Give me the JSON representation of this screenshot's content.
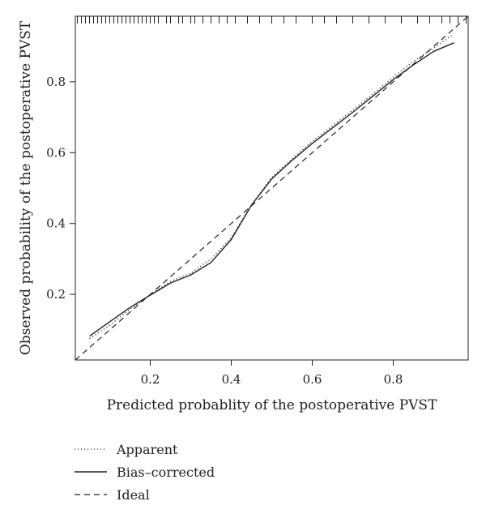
{
  "chart_data": {
    "type": "line",
    "title": "",
    "xlabel": "Predicted probablity of the postoperative PVST",
    "ylabel": "Observed probability of the postoperative PVST",
    "xlim": [
      0.015,
      0.985
    ],
    "ylim": [
      0.015,
      0.985
    ],
    "x_ticks": [
      0.2,
      0.4,
      0.6,
      0.8
    ],
    "y_ticks": [
      0.2,
      0.4,
      0.6,
      0.8
    ],
    "x_tick_labels": [
      "0.2",
      "0.4",
      "0.6",
      "0.8"
    ],
    "y_tick_labels": [
      "0.2",
      "0.4",
      "0.6",
      "0.8"
    ],
    "grid": false,
    "legend_position": "bottom-left, below plot",
    "series": [
      {
        "name": "Apparent",
        "style": "dotted",
        "x": [
          0.05,
          0.1,
          0.15,
          0.2,
          0.25,
          0.3,
          0.35,
          0.4,
          0.45,
          0.5,
          0.55,
          0.6,
          0.65,
          0.7,
          0.75,
          0.8,
          0.85,
          0.9,
          0.95
        ],
        "y": [
          0.075,
          0.113,
          0.158,
          0.199,
          0.237,
          0.26,
          0.3,
          0.36,
          0.453,
          0.53,
          0.582,
          0.632,
          0.676,
          0.72,
          0.766,
          0.813,
          0.858,
          0.895,
          0.935
        ]
      },
      {
        "name": "Bias–corrected",
        "style": "solid",
        "x": [
          0.05,
          0.1,
          0.15,
          0.2,
          0.25,
          0.3,
          0.35,
          0.4,
          0.45,
          0.5,
          0.55,
          0.6,
          0.65,
          0.7,
          0.75,
          0.8,
          0.85,
          0.9,
          0.95
        ],
        "y": [
          0.082,
          0.123,
          0.163,
          0.198,
          0.232,
          0.255,
          0.29,
          0.355,
          0.452,
          0.526,
          0.578,
          0.626,
          0.67,
          0.714,
          0.76,
          0.806,
          0.848,
          0.886,
          0.91
        ]
      },
      {
        "name": "Ideal",
        "style": "dashed",
        "x": [
          0.015,
          0.985
        ],
        "y": [
          0.015,
          0.985
        ]
      }
    ],
    "rug_x": [
      0.02,
      0.03,
      0.04,
      0.05,
      0.06,
      0.07,
      0.08,
      0.09,
      0.1,
      0.11,
      0.12,
      0.13,
      0.14,
      0.15,
      0.16,
      0.17,
      0.18,
      0.19,
      0.2,
      0.21,
      0.22,
      0.24,
      0.25,
      0.27,
      0.28,
      0.3,
      0.31,
      0.33,
      0.35,
      0.37,
      0.39,
      0.41,
      0.44,
      0.47,
      0.5,
      0.53,
      0.56,
      0.6,
      0.63,
      0.66,
      0.7,
      0.74,
      0.78,
      0.82,
      0.86,
      0.89,
      0.92,
      0.94,
      0.96,
      0.98
    ]
  },
  "legend": [
    {
      "label": "Apparent",
      "style": "dotted"
    },
    {
      "label": "Bias–corrected",
      "style": "solid"
    },
    {
      "label": "Ideal",
      "style": "dashed"
    }
  ]
}
